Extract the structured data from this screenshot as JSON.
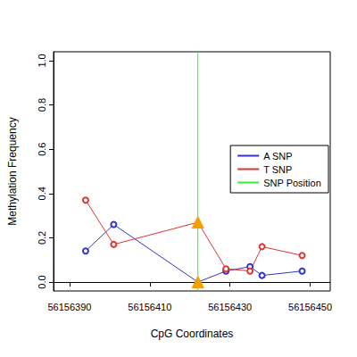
{
  "chart_data": {
    "type": "line",
    "x_label": "CpG Coordinates",
    "y_label": "Methylation Frequency",
    "x": [
      56156394,
      56156401,
      56156422,
      56156429,
      56156435,
      56156438,
      56156448
    ],
    "series": [
      {
        "name": "A SNP",
        "color": "#3333cc",
        "marker": "open_circle",
        "values": [
          0.14,
          0.26,
          0.0,
          0.05,
          0.07,
          0.03,
          0.05
        ]
      },
      {
        "name": "T SNP",
        "color": "#dd3333",
        "marker": "open_circle",
        "values": [
          0.37,
          0.17,
          0.27,
          0.06,
          0.05,
          0.16,
          0.12
        ]
      }
    ],
    "vlines": [
      {
        "name": "SNP Position",
        "x": 56156422,
        "color": "#33ee33"
      }
    ],
    "xlim": [
      56156386,
      56156455
    ],
    "xticks": [
      56156390,
      56156410,
      56156430,
      56156450
    ],
    "ylim": [
      -0.04,
      1.04
    ],
    "yticks": [
      {
        "value": 0,
        "label": "0.0"
      },
      0.2,
      0.4,
      0.6,
      0.8,
      {
        "value": 1,
        "label": "1.0"
      }
    ],
    "grid": false,
    "legend": "right"
  }
}
